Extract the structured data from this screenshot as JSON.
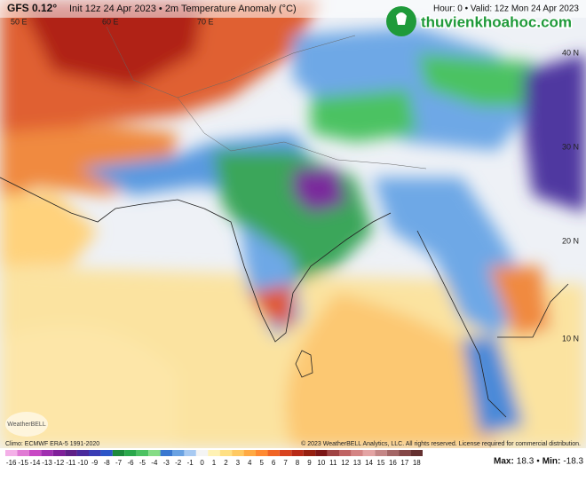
{
  "header": {
    "model": "GFS 0.12°",
    "title": "Init 12z 24 Apr 2023 • 2m Temperature Anomaly (°C)",
    "valid": "Hour: 0 • Valid: 12z Mon 24 Apr 2023"
  },
  "watermark": "thuvienkhoahoc.com",
  "map": {
    "lon_labels": [
      "50 E",
      "60 E",
      "70 E"
    ],
    "lat_labels": [
      "40 N",
      "30 N",
      "20 N",
      "10 N"
    ],
    "logo": "WeatherBELL"
  },
  "footer": {
    "climo": "Climo: ECMWF ERA-5 1991-2020",
    "copyright": "© 2023 WeatherBELL Analytics, LLC. All rights reserved. License required for commercial distribution."
  },
  "colorbar": {
    "ticks": [
      -16,
      -15,
      -14,
      -13,
      -12,
      -11,
      -10,
      -9,
      -8,
      -7,
      -6,
      -5,
      -4,
      -3,
      -2,
      -1,
      0,
      1,
      2,
      3,
      4,
      5,
      6,
      7,
      8,
      9,
      10,
      11,
      12,
      13,
      14,
      15,
      16,
      17,
      18
    ],
    "colors": [
      "#f4b0e8",
      "#e07ad4",
      "#c848c4",
      "#a030b0",
      "#80209a",
      "#602088",
      "#4a2a9c",
      "#3a3cb4",
      "#2c56c8",
      "#1c8a3c",
      "#2aa84c",
      "#4cc262",
      "#86dc86",
      "#3a78d0",
      "#6aa2e2",
      "#a8caf2",
      "#f4f4f4",
      "#fff2b4",
      "#ffe084",
      "#ffc962",
      "#ffaa44",
      "#ff8a32",
      "#f06424",
      "#d84420",
      "#b82a18",
      "#962010",
      "#7c1616",
      "#a04444",
      "#c06464",
      "#d48484",
      "#e4a4a4",
      "#c48686",
      "#a46666",
      "#844646",
      "#643030"
    ]
  },
  "stats": {
    "max_label": "Max:",
    "max": 18.3,
    "separator": "•",
    "min_label": "Min:",
    "min": -18.3
  }
}
